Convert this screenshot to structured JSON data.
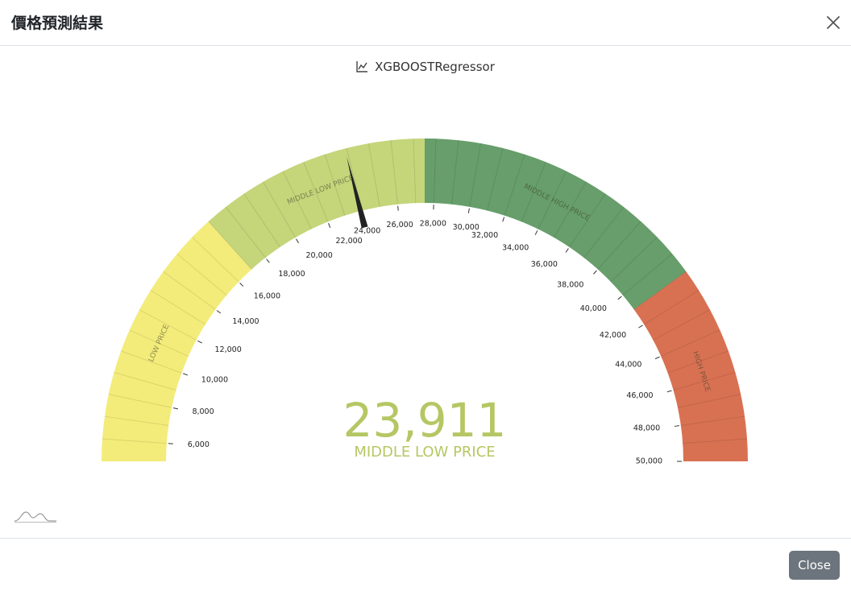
{
  "modal": {
    "title": "價格預測結果",
    "close_button_label": "Close"
  },
  "chart_data": {
    "type": "gauge",
    "title": "XGBOOSTRegressor",
    "min": 5000,
    "max": 50000,
    "value": 23911,
    "value_label": "23,911",
    "value_category": "MIDDLE LOW PRICE",
    "ticks": [
      "6,000",
      "8,000",
      "10,000",
      "12,000",
      "14,000",
      "16,000",
      "18,000",
      "20,000",
      "22,000",
      "24,000",
      "26,000",
      "28,000",
      "30,000",
      "32,000",
      "34,000",
      "36,000",
      "38,000",
      "40,000",
      "42,000",
      "44,000",
      "46,000",
      "48,000",
      "50,000"
    ],
    "bands": [
      {
        "label": "LOW PRICE",
        "from": 5000,
        "to": 17000,
        "color": "#f3ec7a"
      },
      {
        "label": "MIDDLE LOW PRICE",
        "from": 17000,
        "to": 27500,
        "color": "#c5d57a"
      },
      {
        "label": "MIDDLE HIGH PRICE",
        "from": 27500,
        "to": 41000,
        "color": "#679e6b"
      },
      {
        "label": "HIGH PRICE",
        "from": 41000,
        "to": 50000,
        "color": "#d87152"
      }
    ],
    "value_color": "#b5c764"
  },
  "icons": {
    "chart_title": "line-chart-icon",
    "corner": "wave-icon",
    "close": "close-icon"
  }
}
